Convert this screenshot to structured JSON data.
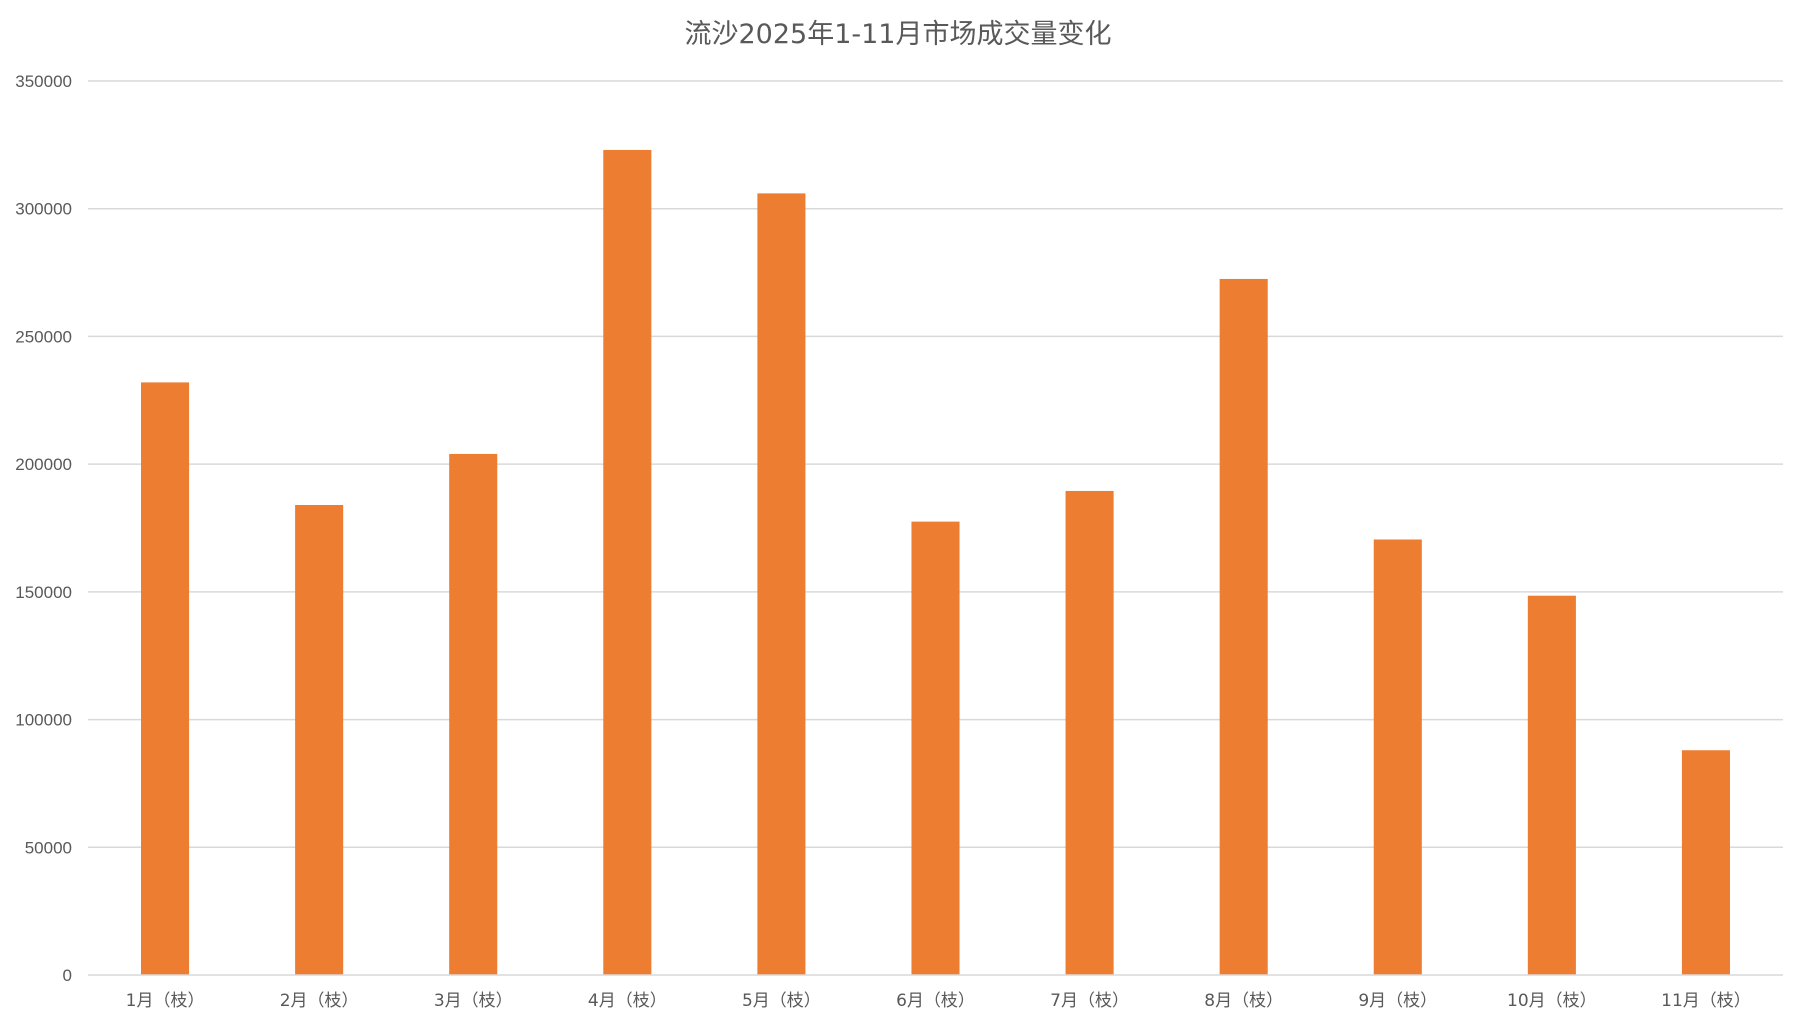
{
  "chart_data": {
    "type": "bar",
    "title": "流沙2025年1-11月市场成交量变化",
    "xlabel": "",
    "ylabel": "",
    "categories": [
      "1月（枝）",
      "2月（枝）",
      "3月（枝）",
      "4月（枝）",
      "5月（枝）",
      "6月（枝）",
      "7月（枝）",
      "8月（枝）",
      "9月（枝）",
      "10月（枝）",
      "11月（枝）"
    ],
    "values": [
      232000,
      184000,
      204000,
      323000,
      306000,
      177500,
      189500,
      272500,
      170500,
      148500,
      88000
    ],
    "ylim": [
      0,
      350000
    ],
    "yticks": [
      "0",
      "50000",
      "100000",
      "150000",
      "200000",
      "250000",
      "300000",
      "350000"
    ],
    "grid": true,
    "legend": "none",
    "colors": {
      "bar": "#ED7D31",
      "grid": "#D9D9D9",
      "text": "#595959"
    }
  }
}
